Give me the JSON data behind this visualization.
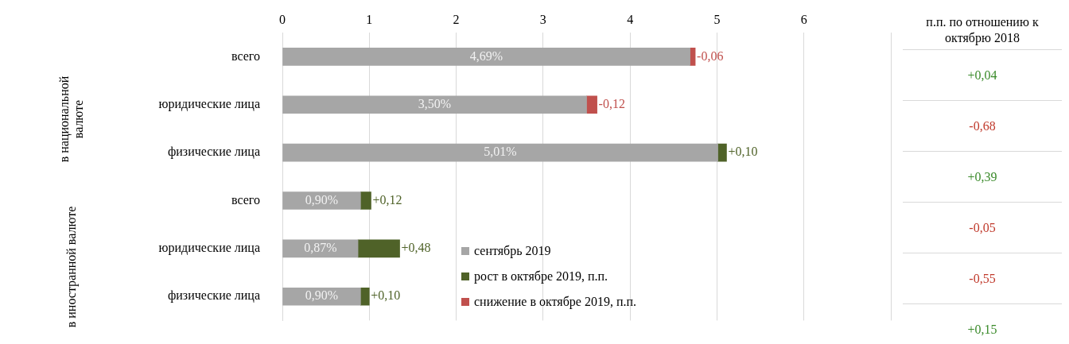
{
  "chart_data": {
    "type": "bar",
    "orientation": "horizontal",
    "stacked": true,
    "categories": [
      "всего",
      "юридические лица",
      "физические лица",
      "всего",
      "юридические лица",
      "физические лица"
    ],
    "series": [
      {
        "name": "сентябрь 2019",
        "color": "#a6a6a6",
        "values": [
          4.69,
          3.5,
          5.01,
          0.9,
          0.87,
          0.9
        ],
        "value_labels": [
          "4,69%",
          "3,50%",
          "5,01%",
          "0,90%",
          "0,87%",
          "0,90%"
        ]
      },
      {
        "name": "рост в октябре 2019, п.п.",
        "color": "#4f6228",
        "values": [
          null,
          null,
          0.1,
          0.12,
          0.48,
          0.1
        ],
        "value_labels": [
          null,
          null,
          "+0,10",
          "+0,12",
          "+0,48",
          "+0,10"
        ]
      },
      {
        "name": "снижение в октябре 2019, п.п.",
        "color": "#c0504d",
        "values": [
          -0.06,
          -0.12,
          null,
          null,
          null,
          null
        ],
        "base": [
          4.75,
          3.62,
          null,
          null,
          null,
          null
        ],
        "value_labels": [
          "-0,06",
          "-0,12",
          null,
          null,
          null,
          null
        ]
      }
    ],
    "xlim": [
      0,
      7
    ],
    "xticks": [
      0,
      1,
      2,
      3,
      4,
      5,
      6,
      {
        "value": 7,
        "label": null
      }
    ],
    "grid": "x",
    "legend": "bottom",
    "annotations": [
      "в национальной валюте",
      "в иностранной валюте",
      "п.п. по отношению к октябрю 2018",
      "+0,04",
      "-0,68",
      "+0,39",
      "-0,05",
      "-0,55",
      "+0,15"
    ]
  }
}
